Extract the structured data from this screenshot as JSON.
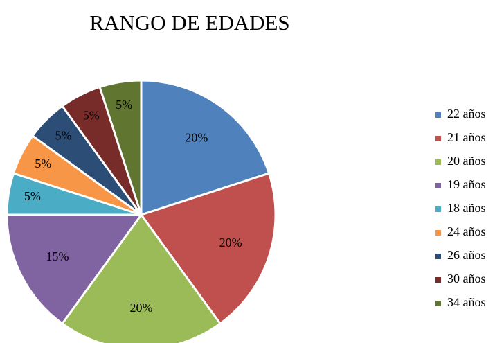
{
  "chart_data": {
    "type": "pie",
    "title": "RANGO DE EDADES",
    "categories": [
      "22 años",
      "21 años",
      "20 años",
      "19 años",
      "18 años",
      "24 años",
      "26 años",
      "30 años",
      "34 años"
    ],
    "values": [
      20,
      20,
      20,
      15,
      5,
      5,
      5,
      5,
      5
    ],
    "value_labels": [
      "20%",
      "20%",
      "20%",
      "15%",
      "5%",
      "5%",
      "5%",
      "5%",
      "5%"
    ],
    "colors": [
      "#4f81bd",
      "#c0504d",
      "#9bbb59",
      "#8064a2",
      "#4bacc6",
      "#f79646",
      "#2c4d75",
      "#772c2a",
      "#5f7530"
    ],
    "legend": "right"
  }
}
